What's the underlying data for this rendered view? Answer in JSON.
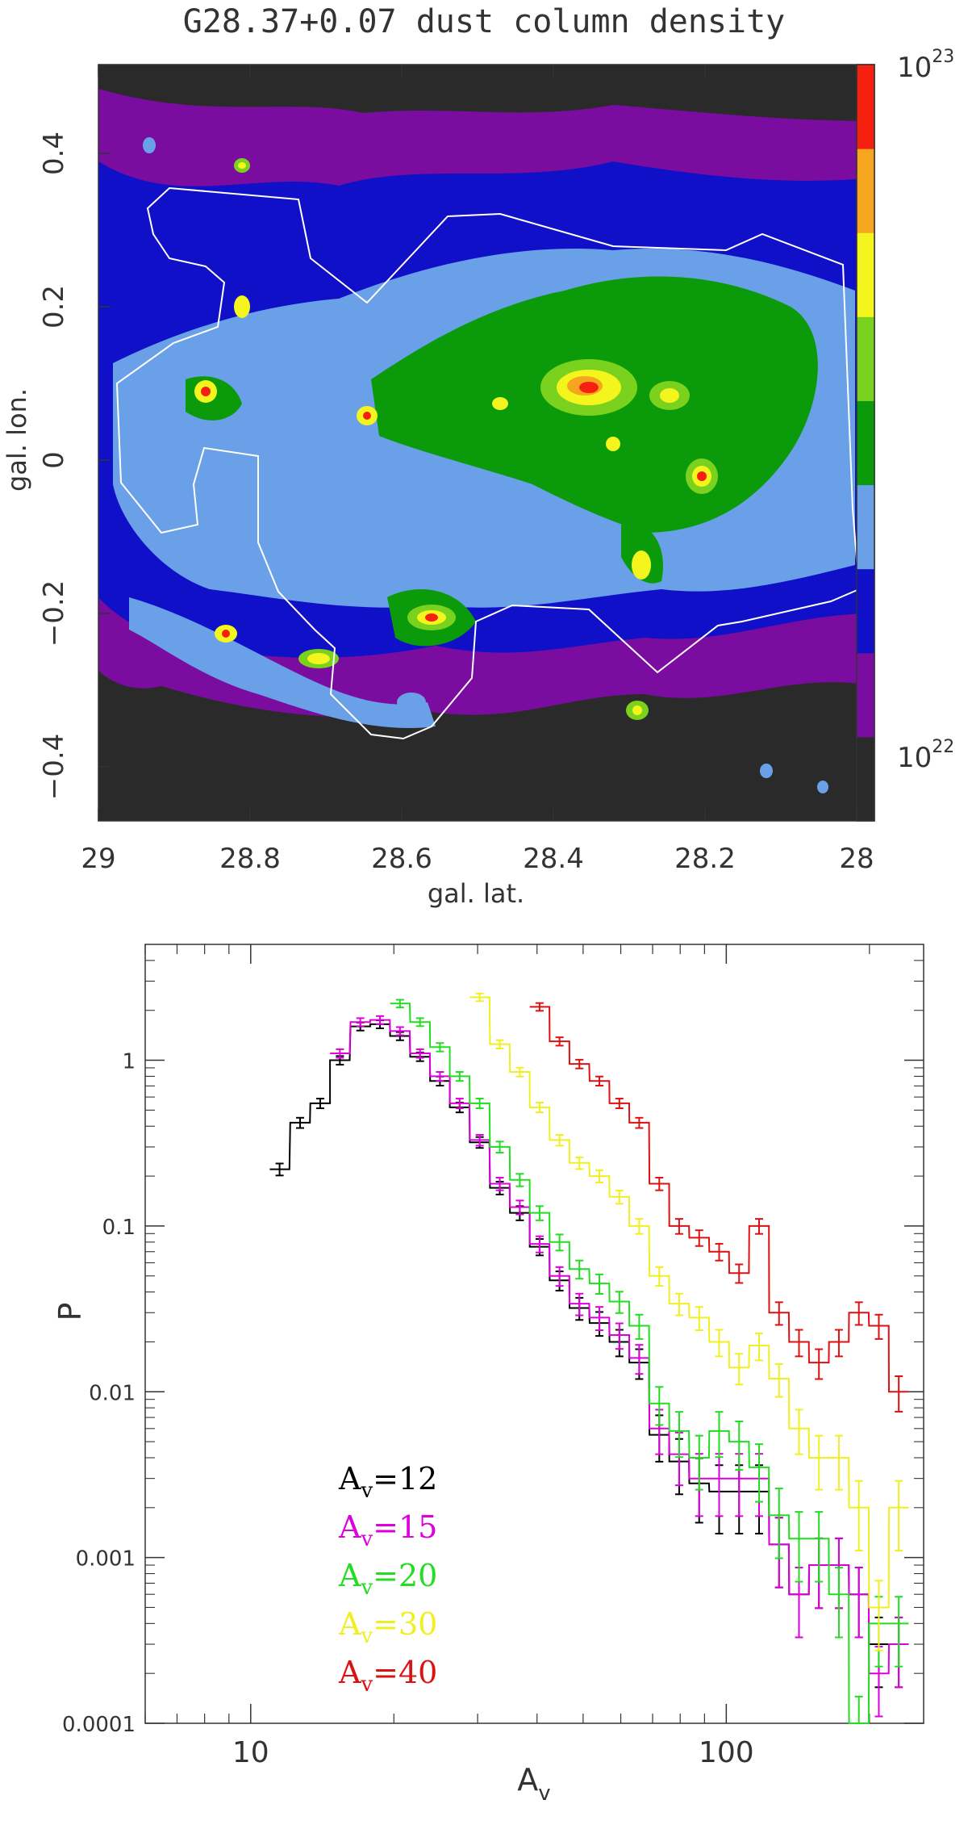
{
  "map_panel": {
    "title": "G28.37+0.07 dust column density",
    "xlabel": "gal. lat.",
    "ylabel": "gal. lon.",
    "xticks": [
      "29",
      "28.8",
      "28.6",
      "28.4",
      "28.2",
      "28"
    ],
    "yticks": [
      "0.4",
      "0.2",
      "0",
      "−0.2",
      "−0.4"
    ],
    "colorbar": {
      "top_label_base": "10",
      "top_label_exp": "23",
      "bottom_label_base": "10",
      "bottom_label_exp": "22",
      "colors": [
        "#2a2a2a",
        "#7a0da0",
        "#1010c8",
        "#6aa0e8",
        "#0a9a0a",
        "#7ad21e",
        "#f5f51e",
        "#f5a51e",
        "#f52010"
      ]
    },
    "outline_color": "#ffffff"
  },
  "chart_data": {
    "type": "line",
    "xlabel": "A",
    "xlabel_sub": "v",
    "ylabel": "P",
    "xscale": "log",
    "yscale": "log",
    "xlim": [
      6,
      260
    ],
    "ylim": [
      0.0001,
      5
    ],
    "xticks": [
      "10",
      "100"
    ],
    "yticks": [
      "1",
      "0.1",
      "0.01",
      "0.001",
      "0.0001"
    ],
    "legend_position": "bottom-left",
    "series": [
      {
        "name_base": "A",
        "name_sub": "v",
        "name_rest": "=12",
        "color": "#000000",
        "x": [
          11.5,
          12.7,
          14.0,
          15.4,
          17.0,
          18.7,
          20.6,
          22.7,
          25.0,
          27.5,
          30.3,
          33.4,
          36.8,
          40.5,
          44.6,
          49.1,
          54.1,
          59.6,
          65.6,
          72.3,
          79.6,
          87.7,
          96.6,
          106.4,
          117.2,
          129.1,
          142.2,
          156.6,
          172.5,
          190.0,
          209.3,
          230.5
        ],
        "y": [
          0.22,
          0.42,
          0.55,
          1.0,
          1.6,
          1.65,
          1.4,
          1.05,
          0.75,
          0.52,
          0.32,
          0.17,
          0.12,
          0.075,
          0.047,
          0.032,
          0.026,
          0.02,
          0.015,
          0.0055,
          0.0038,
          0.0028,
          0.0025,
          0.0025,
          0.0025,
          0.0012,
          0.0006,
          0.0009,
          0.0009,
          0.0006,
          0.0003,
          0.0003
        ]
      },
      {
        "name_base": "A",
        "name_sub": "v",
        "name_rest": "=15",
        "color": "#dd00dd",
        "x": [
          15.4,
          17.0,
          18.7,
          20.6,
          22.7,
          25.0,
          27.5,
          30.3,
          33.4,
          36.8,
          40.5,
          44.6,
          49.1,
          54.1,
          59.6,
          65.6,
          72.3,
          79.6,
          87.7,
          96.6,
          106.4,
          117.2,
          129.1,
          142.2,
          156.6,
          172.5,
          190.0,
          209.3,
          230.5
        ],
        "y": [
          1.1,
          1.7,
          1.75,
          1.5,
          1.1,
          0.8,
          0.55,
          0.33,
          0.18,
          0.13,
          0.078,
          0.05,
          0.034,
          0.028,
          0.022,
          0.016,
          0.006,
          0.0042,
          0.003,
          0.003,
          0.003,
          0.003,
          0.0012,
          0.0006,
          0.0009,
          0.0009,
          0.0006,
          0.0002,
          0.0003
        ]
      },
      {
        "name_base": "A",
        "name_sub": "v",
        "name_rest": "=20",
        "color": "#22dd22",
        "x": [
          20.6,
          22.7,
          25.0,
          27.5,
          30.3,
          33.4,
          36.8,
          40.5,
          44.6,
          49.1,
          54.1,
          59.6,
          65.6,
          72.3,
          79.6,
          87.7,
          96.6,
          106.4,
          117.2,
          129.1,
          142.2,
          156.6,
          172.5,
          190.0,
          209.3,
          230.5
        ],
        "y": [
          2.2,
          1.7,
          1.2,
          0.8,
          0.55,
          0.3,
          0.19,
          0.12,
          0.08,
          0.055,
          0.045,
          0.035,
          0.025,
          0.0085,
          0.0058,
          0.004,
          0.0058,
          0.005,
          0.0035,
          0.0018,
          0.0013,
          0.0013,
          0.0006,
          0.0001,
          0.0004,
          0.0004
        ]
      },
      {
        "name_base": "A",
        "name_sub": "v",
        "name_rest": "=30",
        "color": "#f0f020",
        "x": [
          30.3,
          33.4,
          36.8,
          40.5,
          44.6,
          49.1,
          54.1,
          59.6,
          65.6,
          72.3,
          79.6,
          87.7,
          96.6,
          106.4,
          117.2,
          129.1,
          142.2,
          156.6,
          172.5,
          190.0,
          209.3,
          230.5
        ],
        "y": [
          2.4,
          1.25,
          0.85,
          0.52,
          0.33,
          0.24,
          0.2,
          0.15,
          0.1,
          0.05,
          0.034,
          0.028,
          0.02,
          0.014,
          0.019,
          0.012,
          0.006,
          0.004,
          0.004,
          0.002,
          0.0005,
          0.002
        ]
      },
      {
        "name_base": "A",
        "name_sub": "v",
        "name_rest": "=40",
        "color": "#dd1111",
        "x": [
          40.5,
          44.6,
          49.1,
          54.1,
          59.6,
          65.6,
          72.3,
          79.6,
          87.7,
          96.6,
          106.4,
          117.2,
          129.1,
          142.2,
          156.6,
          172.5,
          190.0,
          209.3,
          230.5
        ],
        "y": [
          2.1,
          1.3,
          0.95,
          0.75,
          0.55,
          0.42,
          0.18,
          0.1,
          0.085,
          0.07,
          0.052,
          0.1,
          0.03,
          0.02,
          0.015,
          0.02,
          0.03,
          0.025,
          0.01
        ]
      }
    ]
  }
}
